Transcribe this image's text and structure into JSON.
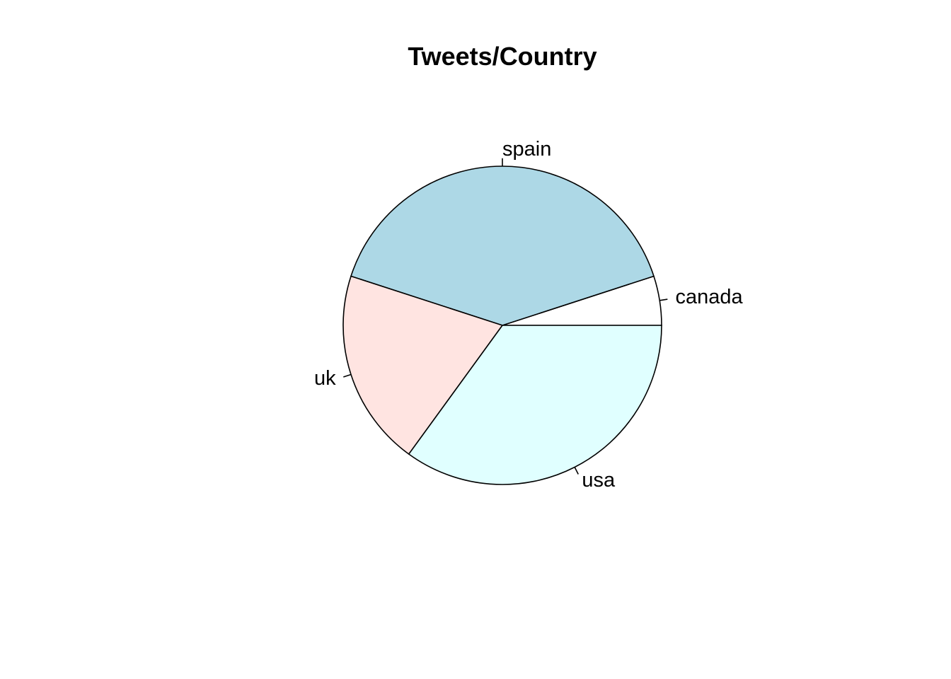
{
  "chart_data": {
    "type": "pie",
    "title": "Tweets/Country",
    "start": "right",
    "direction": "counterclockwise",
    "slices": [
      {
        "label": "canada",
        "value": 5,
        "color": "#ffffff"
      },
      {
        "label": "spain",
        "value": 40,
        "color": "#add8e6"
      },
      {
        "label": "uk",
        "value": 20,
        "color": "#ffe4e1"
      },
      {
        "label": "usa",
        "value": 35,
        "color": "#e0ffff"
      }
    ]
  }
}
